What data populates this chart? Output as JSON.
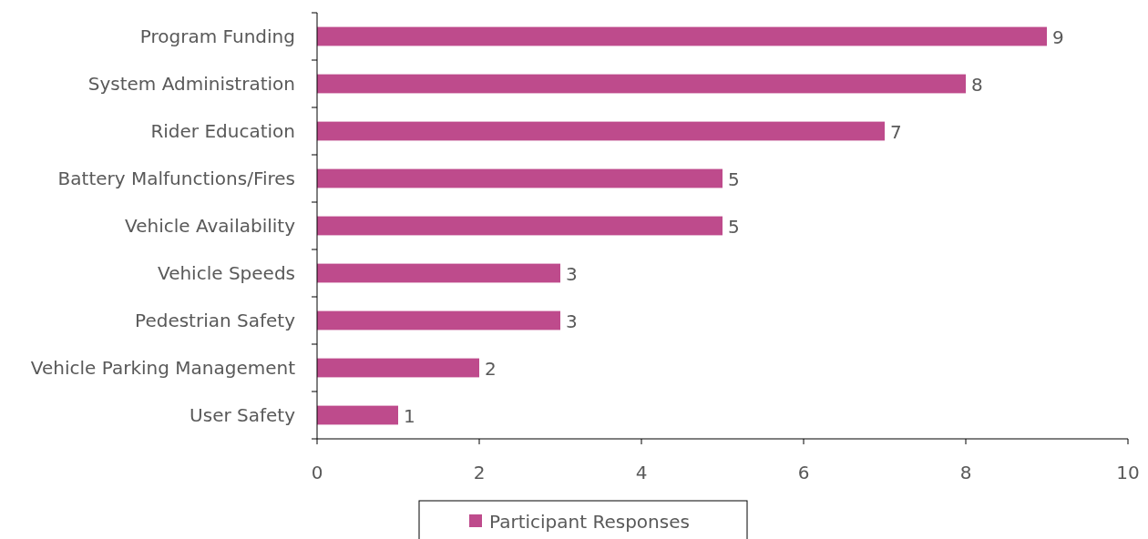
{
  "chart_data": {
    "type": "bar",
    "orientation": "horizontal",
    "categories": [
      "Program Funding",
      "System Administration",
      "Rider Education",
      "Battery Malfunctions/Fires",
      "Vehicle Availability",
      "Vehicle Speeds",
      "Pedestrian Safety",
      "Vehicle Parking Management",
      "User Safety"
    ],
    "series": [
      {
        "name": "Participant Responses",
        "color": "#be4b8c",
        "values": [
          9,
          8,
          7,
          5,
          5,
          3,
          3,
          2,
          1
        ]
      }
    ],
    "xlim": [
      0,
      10
    ],
    "xticks": [
      0,
      2,
      4,
      6,
      8,
      10
    ],
    "data_labels": true,
    "grid": false,
    "legend": "bottom"
  }
}
